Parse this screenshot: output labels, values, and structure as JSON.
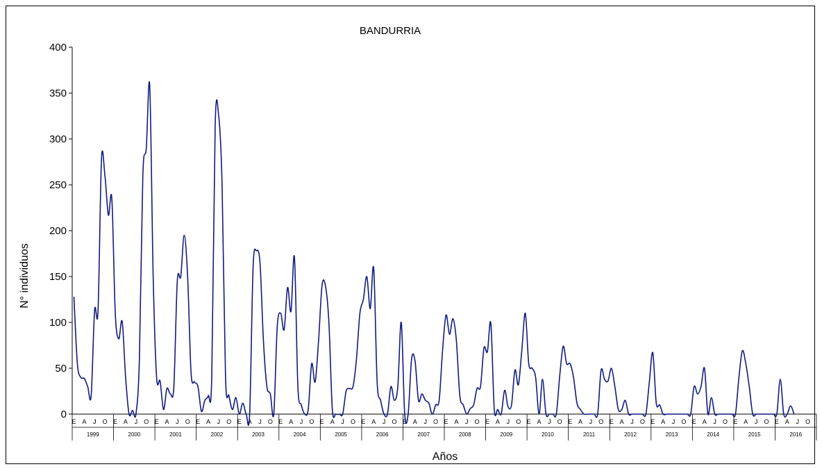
{
  "chart_data": {
    "type": "line",
    "title": "BANDURRIA",
    "ylabel": "N° individuos",
    "xlabel": "Años",
    "ylim": [
      0,
      400
    ],
    "yticks": [
      0,
      50,
      100,
      150,
      200,
      250,
      300,
      350,
      400
    ],
    "grid": false,
    "legend": "none",
    "years": [
      "1999",
      "2000",
      "2001",
      "2002",
      "2003",
      "2004",
      "2005",
      "2006",
      "2007",
      "2008",
      "2009",
      "2010",
      "2011",
      "2012",
      "2013",
      "2014",
      "2015",
      "2016"
    ],
    "month_tick_labels": [
      "E",
      "A",
      "J",
      "O"
    ],
    "series": [
      {
        "color": "#0f1a80",
        "values": [
          128,
          55,
          40,
          39,
          30,
          20,
          113,
          113,
          278,
          260,
          217,
          235,
          110,
          82,
          101,
          40,
          0,
          4,
          0,
          60,
          260,
          290,
          358,
          150,
          40,
          36,
          5,
          28,
          22,
          30,
          145,
          150,
          195,
          150,
          45,
          35,
          30,
          3,
          15,
          20,
          40,
          315,
          326,
          250,
          40,
          20,
          5,
          18,
          0,
          12,
          0,
          0,
          160,
          178,
          165,
          80,
          30,
          22,
          0,
          95,
          110,
          92,
          138,
          112,
          171,
          30,
          10,
          0,
          5,
          55,
          35,
          80,
          140,
          140,
          100,
          5,
          0,
          0,
          0,
          25,
          28,
          30,
          60,
          110,
          125,
          150,
          115,
          159,
          35,
          15,
          0,
          0,
          30,
          15,
          30,
          100,
          0,
          0,
          60,
          58,
          15,
          22,
          15,
          12,
          0,
          10,
          15,
          70,
          108,
          87,
          104,
          80,
          20,
          10,
          0,
          6,
          10,
          28,
          30,
          72,
          68,
          99,
          5,
          5,
          0,
          26,
          8,
          10,
          48,
          32,
          70,
          110,
          55,
          50,
          40,
          0,
          38,
          0,
          0,
          0,
          0,
          42,
          74,
          55,
          55,
          40,
          12,
          5,
          0,
          0,
          0,
          0,
          0,
          48,
          38,
          36,
          50,
          30,
          5,
          5,
          15,
          0,
          0,
          0,
          0,
          0,
          0,
          35,
          67,
          12,
          10,
          0,
          0,
          0,
          0,
          0,
          0,
          0,
          0,
          0,
          30,
          22,
          30,
          50,
          0,
          18,
          0,
          0,
          0,
          0,
          0,
          0,
          0,
          40,
          69,
          55,
          30,
          0,
          0,
          0,
          0,
          0,
          0,
          0,
          0,
          38,
          0,
          0,
          9,
          0
        ]
      }
    ]
  }
}
